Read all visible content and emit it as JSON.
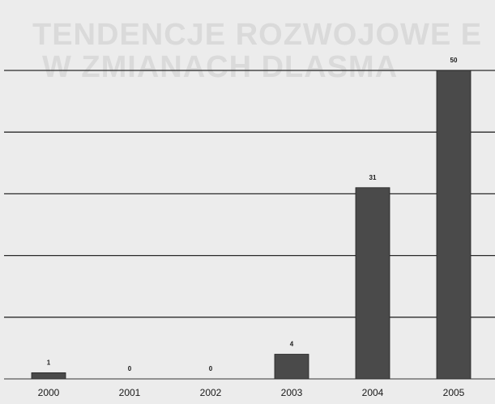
{
  "background_text": {
    "line1": "TENDENCJE ROZWOJOWE E",
    "line2": "W ZMIANACH DLASMA"
  },
  "chart_data": {
    "type": "bar",
    "categories": [
      "2000",
      "2001",
      "2002",
      "2003",
      "2004",
      "2005"
    ],
    "values": [
      1,
      0,
      0,
      4,
      31,
      50
    ],
    "data_labels": [
      "1",
      "0",
      "0",
      "4",
      "31",
      "50"
    ],
    "title": "",
    "xlabel": "",
    "ylabel": "",
    "ylim": [
      0,
      55
    ],
    "grid": true,
    "gridlines": [
      10,
      20,
      30,
      40,
      50
    ],
    "legend": "none",
    "colors": {
      "bar": "#4a4a4a",
      "grid": "#2a2a2a",
      "axis": "#333333",
      "text": "#1a1a1a"
    }
  }
}
